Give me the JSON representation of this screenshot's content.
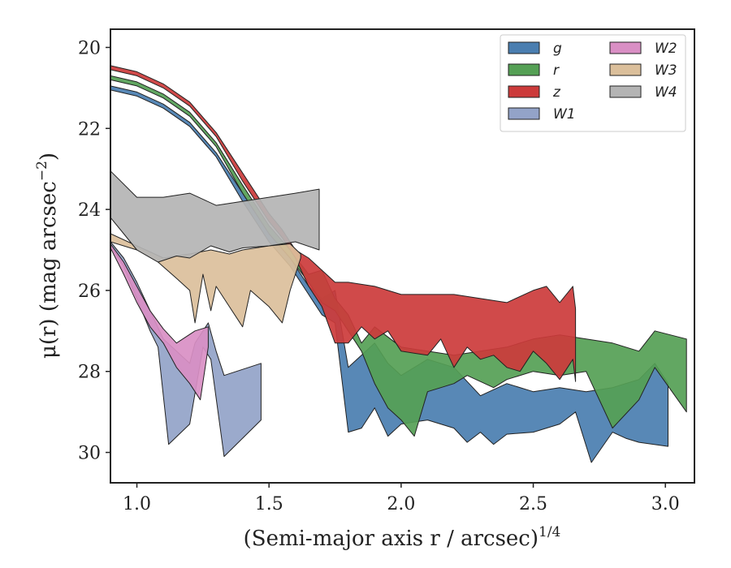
{
  "chart_data": {
    "type": "area",
    "title": "",
    "xlabel": "(Semi-major axis r / arcsec)",
    "xlabel_exponent": "1/4",
    "ylabel": "μ(r) (mag arcsec",
    "ylabel_exponent": "−2",
    "ylabel_close": ")",
    "xlim": [
      0.9,
      3.11
    ],
    "ylim": [
      30.75,
      19.55
    ],
    "y_inverted": true,
    "grid": false,
    "legend_placement": "top-right",
    "legend_columns": 2,
    "x_ticks": [
      1.0,
      1.5,
      2.0,
      2.5,
      3.0
    ],
    "x_tick_labels": [
      "1.0",
      "1.5",
      "2.0",
      "2.5",
      "3.0"
    ],
    "y_ticks": [
      20,
      22,
      24,
      26,
      28,
      30
    ],
    "y_tick_labels": [
      "20",
      "22",
      "24",
      "26",
      "28",
      "30"
    ],
    "series": [
      {
        "name": "g",
        "color": "#4a7eb0",
        "upper": [
          [
            0.9,
            20.95
          ],
          [
            1.0,
            21.1
          ],
          [
            1.1,
            21.4
          ],
          [
            1.2,
            21.85
          ],
          [
            1.3,
            22.6
          ],
          [
            1.4,
            23.6
          ],
          [
            1.5,
            24.6
          ],
          [
            1.58,
            25.2
          ],
          [
            1.65,
            25.9
          ],
          [
            1.7,
            26.2
          ],
          [
            1.75,
            26.0
          ],
          [
            1.8,
            27.9
          ],
          [
            1.85,
            27.6
          ],
          [
            1.9,
            27.3
          ],
          [
            1.95,
            27.8
          ],
          [
            2.0,
            28.1
          ],
          [
            2.1,
            27.7
          ],
          [
            2.2,
            27.9
          ],
          [
            2.3,
            28.6
          ],
          [
            2.4,
            28.3
          ],
          [
            2.5,
            28.5
          ],
          [
            2.6,
            28.4
          ],
          [
            2.7,
            28.5
          ],
          [
            2.8,
            28.4
          ],
          [
            2.9,
            28.2
          ],
          [
            2.96,
            27.8
          ],
          [
            3.01,
            28.3
          ]
        ],
        "lower": [
          [
            0.9,
            21.05
          ],
          [
            1.0,
            21.2
          ],
          [
            1.1,
            21.5
          ],
          [
            1.2,
            21.95
          ],
          [
            1.3,
            22.7
          ],
          [
            1.4,
            23.8
          ],
          [
            1.5,
            24.8
          ],
          [
            1.58,
            25.4
          ],
          [
            1.65,
            26.1
          ],
          [
            1.7,
            26.6
          ],
          [
            1.75,
            26.8
          ],
          [
            1.8,
            29.5
          ],
          [
            1.85,
            29.4
          ],
          [
            1.9,
            28.9
          ],
          [
            1.95,
            29.6
          ],
          [
            2.0,
            29.3
          ],
          [
            2.1,
            29.2
          ],
          [
            2.2,
            29.4
          ],
          [
            2.25,
            29.75
          ],
          [
            2.3,
            29.5
          ],
          [
            2.35,
            29.8
          ],
          [
            2.4,
            29.55
          ],
          [
            2.5,
            29.5
          ],
          [
            2.6,
            29.3
          ],
          [
            2.66,
            29.0
          ],
          [
            2.72,
            30.25
          ],
          [
            2.8,
            29.5
          ],
          [
            2.85,
            29.65
          ],
          [
            2.9,
            29.75
          ],
          [
            3.01,
            29.85
          ]
        ]
      },
      {
        "name": "r",
        "color": "#55a055",
        "upper": [
          [
            0.9,
            20.7
          ],
          [
            1.0,
            20.85
          ],
          [
            1.1,
            21.15
          ],
          [
            1.2,
            21.6
          ],
          [
            1.3,
            22.35
          ],
          [
            1.4,
            23.4
          ],
          [
            1.5,
            24.4
          ],
          [
            1.58,
            25.0
          ],
          [
            1.65,
            25.6
          ],
          [
            1.7,
            25.5
          ],
          [
            1.75,
            26.2
          ],
          [
            1.8,
            26.6
          ],
          [
            1.85,
            27.3
          ],
          [
            1.9,
            26.9
          ],
          [
            2.0,
            27.4
          ],
          [
            2.1,
            27.5
          ],
          [
            2.2,
            27.6
          ],
          [
            2.3,
            27.5
          ],
          [
            2.4,
            27.4
          ],
          [
            2.5,
            27.2
          ],
          [
            2.6,
            27.1
          ],
          [
            2.7,
            27.2
          ],
          [
            2.8,
            27.3
          ],
          [
            2.9,
            27.5
          ],
          [
            2.96,
            27.0
          ],
          [
            3.08,
            27.2
          ]
        ],
        "lower": [
          [
            0.9,
            20.8
          ],
          [
            1.0,
            20.95
          ],
          [
            1.1,
            21.25
          ],
          [
            1.2,
            21.7
          ],
          [
            1.3,
            22.45
          ],
          [
            1.4,
            23.6
          ],
          [
            1.5,
            24.6
          ],
          [
            1.58,
            25.2
          ],
          [
            1.65,
            25.8
          ],
          [
            1.7,
            26.3
          ],
          [
            1.75,
            26.5
          ],
          [
            1.8,
            27.0
          ],
          [
            1.85,
            27.5
          ],
          [
            1.9,
            28.3
          ],
          [
            1.95,
            28.9
          ],
          [
            2.0,
            29.2
          ],
          [
            2.05,
            29.6
          ],
          [
            2.1,
            28.5
          ],
          [
            2.15,
            28.4
          ],
          [
            2.2,
            28.3
          ],
          [
            2.25,
            28.1
          ],
          [
            2.35,
            28.4
          ],
          [
            2.4,
            28.2
          ],
          [
            2.5,
            28.0
          ],
          [
            2.6,
            28.1
          ],
          [
            2.7,
            28.0
          ],
          [
            2.8,
            29.4
          ],
          [
            2.9,
            28.7
          ],
          [
            2.96,
            27.9
          ],
          [
            3.08,
            29.0
          ]
        ]
      },
      {
        "name": "z",
        "color": "#cc3b3b",
        "upper": [
          [
            0.9,
            20.45
          ],
          [
            1.0,
            20.6
          ],
          [
            1.1,
            20.9
          ],
          [
            1.2,
            21.35
          ],
          [
            1.3,
            22.1
          ],
          [
            1.4,
            23.1
          ],
          [
            1.5,
            24.1
          ],
          [
            1.55,
            24.5
          ],
          [
            1.6,
            25.0
          ],
          [
            1.65,
            25.2
          ],
          [
            1.7,
            25.5
          ],
          [
            1.75,
            25.8
          ],
          [
            1.8,
            25.8
          ],
          [
            1.9,
            25.9
          ],
          [
            2.0,
            26.1
          ],
          [
            2.1,
            26.1
          ],
          [
            2.2,
            26.1
          ],
          [
            2.3,
            26.2
          ],
          [
            2.4,
            26.3
          ],
          [
            2.5,
            26.0
          ],
          [
            2.55,
            25.9
          ],
          [
            2.6,
            26.3
          ],
          [
            2.65,
            25.9
          ],
          [
            2.66,
            26.45
          ]
        ],
        "lower": [
          [
            0.9,
            20.55
          ],
          [
            1.0,
            20.7
          ],
          [
            1.1,
            21.0
          ],
          [
            1.2,
            21.45
          ],
          [
            1.3,
            22.2
          ],
          [
            1.4,
            23.3
          ],
          [
            1.5,
            24.3
          ],
          [
            1.55,
            24.7
          ],
          [
            1.6,
            25.2
          ],
          [
            1.65,
            25.9
          ],
          [
            1.7,
            26.4
          ],
          [
            1.75,
            27.3
          ],
          [
            1.8,
            27.3
          ],
          [
            1.85,
            26.9
          ],
          [
            1.9,
            27.2
          ],
          [
            1.95,
            27.0
          ],
          [
            2.0,
            27.5
          ],
          [
            2.1,
            27.6
          ],
          [
            2.15,
            27.2
          ],
          [
            2.2,
            27.9
          ],
          [
            2.25,
            27.4
          ],
          [
            2.3,
            27.7
          ],
          [
            2.35,
            27.6
          ],
          [
            2.4,
            27.9
          ],
          [
            2.45,
            28.0
          ],
          [
            2.5,
            27.5
          ],
          [
            2.55,
            27.8
          ],
          [
            2.6,
            28.2
          ],
          [
            2.65,
            27.7
          ],
          [
            2.66,
            28.25
          ]
        ]
      },
      {
        "name": "W1",
        "color": "#93a3c8",
        "upper": [
          [
            0.9,
            24.8
          ],
          [
            0.95,
            25.2
          ],
          [
            1.0,
            25.8
          ],
          [
            1.05,
            26.5
          ],
          [
            1.1,
            27.2
          ],
          [
            1.15,
            27.5
          ],
          [
            1.2,
            27.8
          ],
          [
            1.22,
            27.3
          ],
          [
            1.27,
            26.8
          ],
          [
            1.3,
            27.5
          ],
          [
            1.33,
            28.1
          ],
          [
            1.47,
            27.8
          ]
        ],
        "lower": [
          [
            0.9,
            24.9
          ],
          [
            0.95,
            25.4
          ],
          [
            1.0,
            26.2
          ],
          [
            1.05,
            27.0
          ],
          [
            1.08,
            27.4
          ],
          [
            1.12,
            29.8
          ],
          [
            1.2,
            29.3
          ],
          [
            1.25,
            27.4
          ],
          [
            1.28,
            27.7
          ],
          [
            1.33,
            30.1
          ],
          [
            1.47,
            29.2
          ]
        ]
      },
      {
        "name": "W2",
        "color": "#d98fc4",
        "upper": [
          [
            0.9,
            24.85
          ],
          [
            0.95,
            25.3
          ],
          [
            1.0,
            25.9
          ],
          [
            1.05,
            26.5
          ],
          [
            1.1,
            26.95
          ],
          [
            1.15,
            27.3
          ],
          [
            1.22,
            27.0
          ],
          [
            1.27,
            26.9
          ]
        ],
        "lower": [
          [
            0.9,
            24.95
          ],
          [
            0.95,
            25.6
          ],
          [
            1.0,
            26.3
          ],
          [
            1.05,
            26.9
          ],
          [
            1.1,
            27.3
          ],
          [
            1.15,
            27.9
          ],
          [
            1.2,
            28.3
          ],
          [
            1.24,
            28.7
          ],
          [
            1.27,
            27.4
          ]
        ]
      },
      {
        "name": "W3",
        "color": "#dbbf9b",
        "upper": [
          [
            0.9,
            24.6
          ],
          [
            1.0,
            24.9
          ],
          [
            1.1,
            25.2
          ],
          [
            1.2,
            25.1
          ],
          [
            1.28,
            25.0
          ],
          [
            1.35,
            25.1
          ],
          [
            1.4,
            25.0
          ],
          [
            1.5,
            24.9
          ],
          [
            1.58,
            24.85
          ],
          [
            1.62,
            25.1
          ]
        ],
        "lower": [
          [
            0.9,
            24.8
          ],
          [
            1.0,
            25.0
          ],
          [
            1.08,
            25.3
          ],
          [
            1.15,
            25.7
          ],
          [
            1.2,
            26.0
          ],
          [
            1.22,
            26.8
          ],
          [
            1.25,
            25.6
          ],
          [
            1.28,
            26.5
          ],
          [
            1.3,
            25.9
          ],
          [
            1.35,
            26.4
          ],
          [
            1.4,
            26.9
          ],
          [
            1.43,
            26.0
          ],
          [
            1.5,
            26.4
          ],
          [
            1.55,
            26.8
          ],
          [
            1.58,
            26.0
          ],
          [
            1.62,
            25.2
          ]
        ]
      },
      {
        "name": "W4",
        "color": "#b4b4b4",
        "upper": [
          [
            0.9,
            23.05
          ],
          [
            1.0,
            23.7
          ],
          [
            1.1,
            23.7
          ],
          [
            1.2,
            23.6
          ],
          [
            1.25,
            23.75
          ],
          [
            1.3,
            23.9
          ],
          [
            1.4,
            23.8
          ],
          [
            1.5,
            23.7
          ],
          [
            1.6,
            23.6
          ],
          [
            1.69,
            23.5
          ]
        ],
        "lower": [
          [
            0.9,
            24.2
          ],
          [
            0.95,
            24.6
          ],
          [
            1.0,
            25.0
          ],
          [
            1.08,
            25.3
          ],
          [
            1.15,
            25.15
          ],
          [
            1.2,
            25.2
          ],
          [
            1.28,
            24.9
          ],
          [
            1.35,
            25.05
          ],
          [
            1.4,
            24.95
          ],
          [
            1.5,
            24.9
          ],
          [
            1.6,
            24.8
          ],
          [
            1.69,
            25.0
          ]
        ]
      }
    ]
  }
}
